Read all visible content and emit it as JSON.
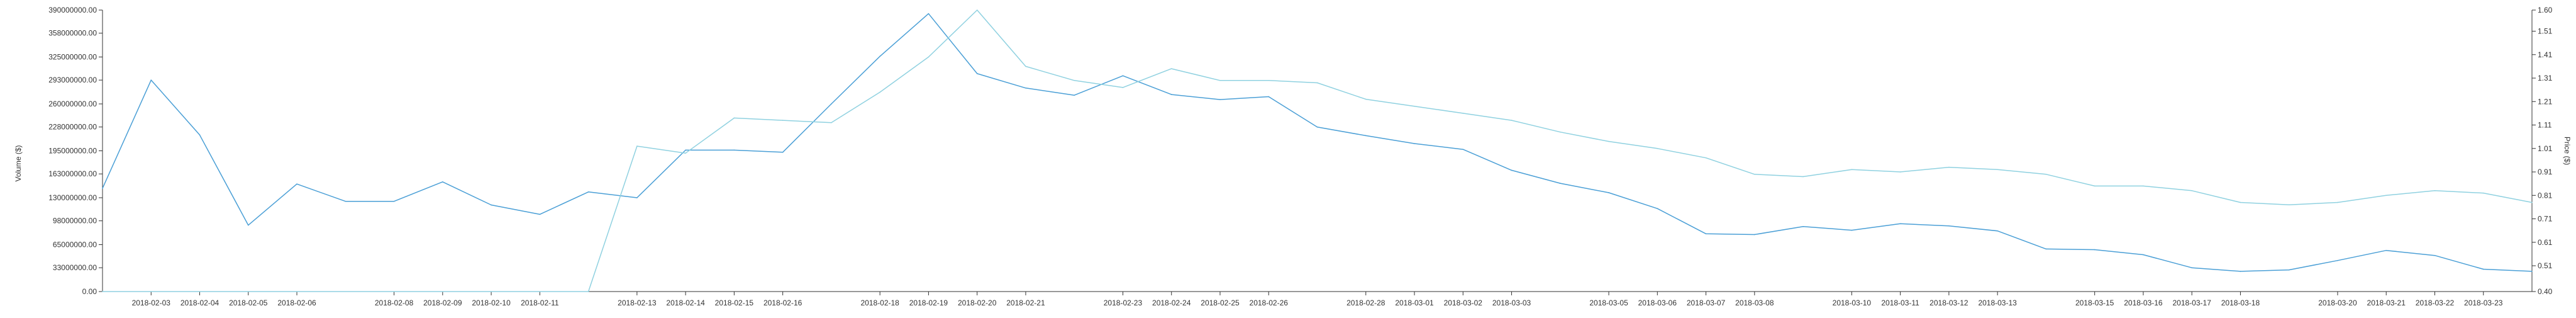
{
  "chart_data": {
    "type": "line",
    "title": "",
    "left_axis": {
      "label": "Volume ($)",
      "ylim": [
        0,
        390000000
      ],
      "ticks": [
        "0.00",
        "33000000.00",
        "65000000.00",
        "98000000.00",
        "130000000.00",
        "163000000.00",
        "195000000.00",
        "228000000.00",
        "260000000.00",
        "293000000.00",
        "325000000.00",
        "358000000.00",
        "390000000.00"
      ],
      "tick_values": [
        0,
        33000000,
        65000000,
        98000000,
        130000000,
        163000000,
        195000000,
        228000000,
        260000000,
        293000000,
        325000000,
        358000000,
        390000000
      ]
    },
    "right_axis": {
      "label": "Price ($)",
      "ylim": [
        0.4,
        1.6
      ],
      "ticks": [
        "0.40",
        "0.51",
        "0.61",
        "0.71",
        "0.81",
        "0.91",
        "1.01",
        "1.11",
        "1.21",
        "1.31",
        "1.41",
        "1.51",
        "1.60"
      ],
      "tick_values": [
        0.4,
        0.51,
        0.61,
        0.71,
        0.81,
        0.91,
        1.01,
        1.11,
        1.21,
        1.31,
        1.41,
        1.51,
        1.6
      ]
    },
    "x_tick_labels": [
      "2018-02-03",
      "2018-02-04",
      "2018-02-05",
      "2018-02-06",
      "2018-02-08",
      "2018-02-09",
      "2018-02-10",
      "2018-02-11",
      "2018-02-13",
      "2018-02-14",
      "2018-02-15",
      "2018-02-16",
      "2018-02-18",
      "2018-02-19",
      "2018-02-20",
      "2018-02-21",
      "2018-02-23",
      "2018-02-24",
      "2018-02-25",
      "2018-02-26",
      "2018-02-28",
      "2018-03-01",
      "2018-03-02",
      "2018-03-03",
      "2018-03-05",
      "2018-03-06",
      "2018-03-07",
      "2018-03-08",
      "2018-03-10",
      "2018-03-11",
      "2018-03-12",
      "2018-03-13",
      "2018-03-15",
      "2018-03-16",
      "2018-03-17",
      "2018-03-18",
      "2018-03-20",
      "2018-03-21",
      "2018-03-22",
      "2018-03-23"
    ],
    "x": [
      "2018-02-02",
      "2018-02-03",
      "2018-02-04",
      "2018-02-05",
      "2018-02-06",
      "2018-02-07",
      "2018-02-08",
      "2018-02-09",
      "2018-02-10",
      "2018-02-11",
      "2018-02-12",
      "2018-02-13",
      "2018-02-14",
      "2018-02-15",
      "2018-02-16",
      "2018-02-17",
      "2018-02-18",
      "2018-02-19",
      "2018-02-20",
      "2018-02-21",
      "2018-02-22",
      "2018-02-23",
      "2018-02-24",
      "2018-02-25",
      "2018-02-26",
      "2018-02-27",
      "2018-02-28",
      "2018-03-01",
      "2018-03-02",
      "2018-03-03",
      "2018-03-04",
      "2018-03-05",
      "2018-03-06",
      "2018-03-07",
      "2018-03-08",
      "2018-03-09",
      "2018-03-10",
      "2018-03-11",
      "2018-03-12",
      "2018-03-13",
      "2018-03-14",
      "2018-03-15",
      "2018-03-16",
      "2018-03-17",
      "2018-03-18",
      "2018-03-19",
      "2018-03-20",
      "2018-03-21",
      "2018-03-22",
      "2018-03-23",
      "2018-03-24"
    ],
    "series": [
      {
        "axis": "left",
        "color": "#4a9fd6",
        "values": [
          143000000,
          293000000,
          217000000,
          92000000,
          149000000,
          125000000,
          125000000,
          152000000,
          120000000,
          107000000,
          138000000,
          130000000,
          196000000,
          196000000,
          193000000,
          260000000,
          326000000,
          385000000,
          302000000,
          282000000,
          272000000,
          299000000,
          273000000,
          266000000,
          270000000,
          228000000,
          216000000,
          205000000,
          197000000,
          168000000,
          150000000,
          137000000,
          115000000,
          80000000,
          79000000,
          90000000,
          85000000,
          94000000,
          91000000,
          84000000,
          59000000,
          58000000,
          51000000,
          33000000,
          28000000,
          30000000,
          43000000,
          57000000,
          50000000,
          31000000,
          28000000
        ]
      },
      {
        "axis": "right",
        "color": "#8fd1e0",
        "values": [
          0.4,
          null,
          null,
          null,
          null,
          null,
          null,
          null,
          null,
          null,
          0.4,
          1.02,
          0.99,
          1.14,
          1.13,
          1.12,
          1.25,
          1.4,
          1.6,
          1.36,
          1.3,
          1.27,
          1.35,
          1.3,
          1.3,
          1.29,
          1.22,
          1.19,
          1.16,
          1.13,
          1.08,
          1.04,
          1.01,
          0.97,
          0.9,
          0.89,
          0.92,
          0.91,
          0.93,
          0.92,
          0.9,
          0.85,
          0.85,
          0.83,
          0.78,
          0.77,
          0.78,
          0.81,
          0.83,
          0.82,
          0.78
        ]
      }
    ],
    "grid": false,
    "legend": "none"
  }
}
